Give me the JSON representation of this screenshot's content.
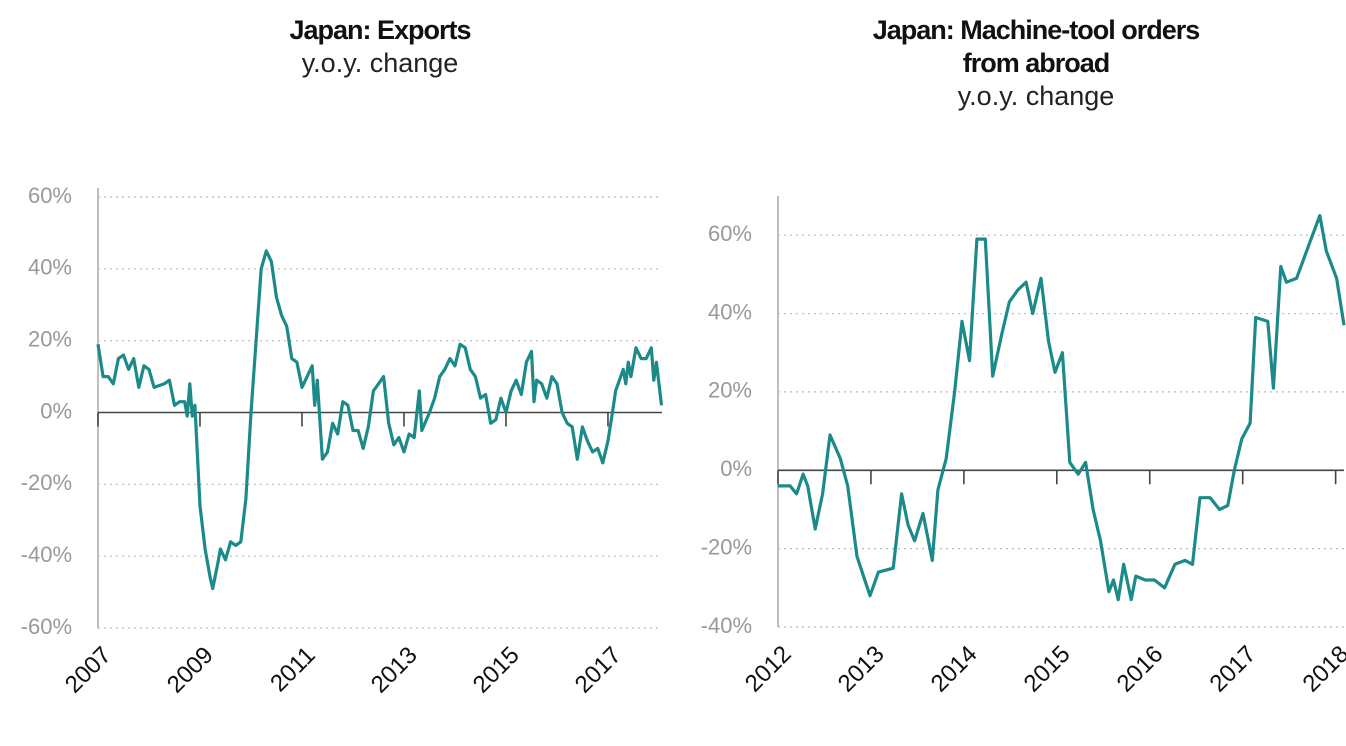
{
  "chart_data": [
    {
      "type": "line",
      "title": "Japan: Exports",
      "subtitle": "y.o.y. change",
      "color": "#1b8a89",
      "grid": true,
      "xlim": [
        2007,
        2018.06
      ],
      "xticks": [
        2007,
        2009,
        2011,
        2013,
        2015,
        2017
      ],
      "ylim": [
        -60,
        60
      ],
      "yticks": [
        {
          "value": -60,
          "label": "-60%"
        },
        {
          "value": -40,
          "label": "-40%"
        },
        {
          "value": -20,
          "label": "-20%"
        },
        {
          "value": 0,
          "label": "0%"
        },
        {
          "value": 20,
          "label": "20%"
        },
        {
          "value": 40,
          "label": "40%"
        },
        {
          "value": 60,
          "label": "60%"
        }
      ],
      "x": [
        2007.0,
        2007.1,
        2007.2,
        2007.3,
        2007.4,
        2007.5,
        2007.6,
        2007.7,
        2007.8,
        2007.9,
        2008.0,
        2008.1,
        2008.3,
        2008.4,
        2008.5,
        2008.6,
        2008.7,
        2008.75,
        2008.8,
        2008.85,
        2008.9,
        2009.0,
        2009.1,
        2009.2,
        2009.25,
        2009.35,
        2009.4,
        2009.5,
        2009.6,
        2009.7,
        2009.8,
        2009.9,
        2010.0,
        2010.1,
        2010.2,
        2010.3,
        2010.4,
        2010.5,
        2010.6,
        2010.7,
        2010.8,
        2010.9,
        2011.0,
        2011.1,
        2011.2,
        2011.25,
        2011.3,
        2011.4,
        2011.5,
        2011.6,
        2011.7,
        2011.8,
        2011.9,
        2012.0,
        2012.1,
        2012.2,
        2012.3,
        2012.4,
        2012.5,
        2012.6,
        2012.7,
        2012.8,
        2012.9,
        2013.0,
        2013.1,
        2013.2,
        2013.3,
        2013.35,
        2013.5,
        2013.6,
        2013.7,
        2013.8,
        2013.9,
        2014.0,
        2014.1,
        2014.2,
        2014.3,
        2014.4,
        2014.5,
        2014.6,
        2014.7,
        2014.8,
        2014.9,
        2015.0,
        2015.1,
        2015.2,
        2015.3,
        2015.4,
        2015.5,
        2015.55,
        2015.6,
        2015.7,
        2015.8,
        2015.9,
        2016.0,
        2016.1,
        2016.2,
        2016.3,
        2016.4,
        2016.5,
        2016.6,
        2016.7,
        2016.8,
        2016.9,
        2017.0,
        2017.1,
        2017.15,
        2017.25,
        2017.3,
        2017.35,
        2017.4,
        2017.45,
        2017.55,
        2017.65,
        2017.75,
        2017.85,
        2017.9,
        2017.95,
        2018.05
      ],
      "values": [
        19,
        10,
        10,
        8,
        15,
        16,
        12,
        15,
        7,
        13,
        12,
        7,
        8,
        9,
        2,
        3,
        3,
        -1,
        8,
        -1,
        2,
        -26,
        -38,
        -46,
        -49,
        -42,
        -38,
        -41,
        -36,
        -37,
        -36,
        -24,
        0,
        20,
        40,
        45,
        42,
        32,
        27,
        24,
        15,
        14,
        7,
        10,
        13,
        2,
        9,
        -13,
        -11,
        -3,
        -6,
        3,
        2,
        -5,
        -5,
        -10,
        -4,
        6,
        8,
        10,
        -3,
        -9,
        -7,
        -11,
        -6,
        -7,
        6,
        -5,
        0,
        4,
        10,
        12,
        15,
        13,
        19,
        18,
        12,
        10,
        4,
        5,
        -3,
        -2,
        4,
        0,
        6,
        9,
        5,
        14,
        17,
        3,
        9,
        8,
        4,
        10,
        8,
        0,
        -3,
        -4,
        -13,
        -4,
        -8,
        -11,
        -10,
        -14,
        -8,
        1,
        6,
        10,
        12,
        8,
        14,
        10,
        18,
        15,
        15,
        18,
        9,
        14,
        2
      ]
    },
    {
      "type": "line",
      "title": "Japan: Machine-tool orders from abroad",
      "subtitle": "y.o.y. change",
      "color": "#1b8a89",
      "grid": true,
      "xlim": [
        2012,
        2018.09
      ],
      "xticks": [
        2012,
        2013,
        2014,
        2015,
        2016,
        2017,
        2018
      ],
      "ylim": [
        -40,
        70
      ],
      "yticks": [
        {
          "value": -40,
          "label": "-40%"
        },
        {
          "value": -20,
          "label": "-20%"
        },
        {
          "value": 0,
          "label": "0%"
        },
        {
          "value": 20,
          "label": "20%"
        },
        {
          "value": 40,
          "label": "40%"
        },
        {
          "value": 60,
          "label": "60%"
        }
      ],
      "x": [
        2012.0,
        2012.13,
        2012.2,
        2012.27,
        2012.32,
        2012.4,
        2012.48,
        2012.56,
        2012.67,
        2012.75,
        2012.85,
        2012.99,
        2013.08,
        2013.24,
        2013.33,
        2013.4,
        2013.47,
        2013.56,
        2013.66,
        2013.72,
        2013.81,
        2013.9,
        2013.98,
        2014.06,
        2014.14,
        2014.23,
        2014.31,
        2014.41,
        2014.49,
        2014.58,
        2014.67,
        2014.74,
        2014.83,
        2014.91,
        2014.98,
        2015.06,
        2015.14,
        2015.23,
        2015.31,
        2015.39,
        2015.47,
        2015.56,
        2015.61,
        2015.66,
        2015.72,
        2015.8,
        2015.85,
        2015.95,
        2016.05,
        2016.16,
        2016.27,
        2016.38,
        2016.46,
        2016.54,
        2016.65,
        2016.75,
        2016.84,
        2016.91,
        2016.99,
        2017.08,
        2017.14,
        2017.27,
        2017.33,
        2017.41,
        2017.47,
        2017.58,
        2017.72,
        2017.83,
        2017.9,
        2018.01,
        2018.09
      ],
      "values": [
        -4,
        -4,
        -6,
        -1,
        -4,
        -15,
        -6,
        9,
        3,
        -4,
        -22,
        -32,
        -26,
        -25,
        -6,
        -14,
        -18,
        -11,
        -23,
        -5,
        3,
        20,
        38,
        28,
        59,
        59,
        24,
        35,
        43,
        46,
        48,
        40,
        49,
        33,
        25,
        30,
        2,
        -1,
        2,
        -10,
        -18,
        -31,
        -28,
        -33,
        -24,
        -33,
        -27,
        -28,
        -28,
        -30,
        -24,
        -23,
        -24,
        -7,
        -7,
        -10,
        -9,
        0,
        8,
        12,
        39,
        38,
        21,
        52,
        48,
        49,
        58,
        65,
        56,
        49,
        37
      ]
    }
  ]
}
